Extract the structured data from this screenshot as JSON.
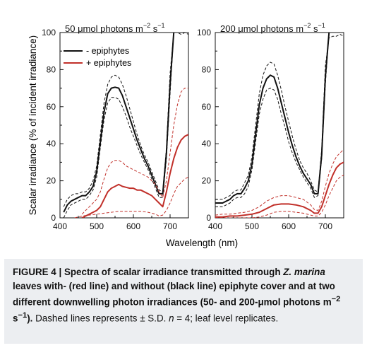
{
  "chart_data": [
    {
      "type": "line",
      "panel_label": "50 μmol photons m",
      "panel_label_sup1": "−2",
      "panel_label_mid": " s",
      "panel_label_sup2": "−1",
      "xlim": [
        400,
        750
      ],
      "ylim": [
        0,
        100
      ],
      "xticks": [
        "400",
        "500",
        "600",
        "700"
      ],
      "yticks": [
        "0",
        "20",
        "40",
        "60",
        "80",
        "100"
      ],
      "legend": {
        "placement": "top-left",
        "entries": [
          "- epiphytes",
          "+ epiphytes"
        ]
      },
      "series": [
        {
          "name": "- epiphytes",
          "color": "#111111",
          "style": "solid",
          "x": [
            410,
            420,
            430,
            440,
            450,
            460,
            470,
            480,
            490,
            500,
            510,
            520,
            530,
            540,
            550,
            560,
            570,
            580,
            590,
            600,
            610,
            620,
            630,
            640,
            650,
            660,
            670,
            680,
            690,
            700,
            710
          ],
          "y": [
            3,
            7,
            9,
            10,
            11,
            12,
            12,
            14,
            17,
            25,
            41,
            57,
            67,
            70,
            70.5,
            70,
            66,
            60,
            54,
            48,
            42,
            37,
            32,
            28,
            23,
            18,
            13,
            13,
            35,
            72,
            100
          ]
        },
        {
          "name": "- epiphytes +SD",
          "color": "#111111",
          "style": "dashed",
          "x": [
            410,
            420,
            430,
            440,
            450,
            460,
            470,
            480,
            490,
            500,
            510,
            520,
            530,
            540,
            550,
            560,
            570,
            580,
            590,
            600,
            610,
            620,
            630,
            640,
            650,
            660,
            670,
            680,
            690,
            700,
            710,
            720,
            730,
            740,
            750
          ],
          "y": [
            6,
            10,
            12,
            13,
            13,
            14,
            14,
            16,
            20,
            28,
            45,
            62,
            72,
            76,
            77,
            76,
            72,
            66,
            59,
            52,
            45,
            39,
            34,
            30,
            25,
            20,
            15,
            14,
            38,
            78,
            100,
            100,
            99,
            100,
            99
          ]
        },
        {
          "name": "- epiphytes -SD",
          "color": "#111111",
          "style": "dashed",
          "x": [
            410,
            420,
            430,
            440,
            450,
            460,
            470,
            480,
            490,
            500,
            510,
            520,
            530,
            540,
            550,
            560,
            570,
            580,
            590,
            600,
            610,
            620,
            630,
            640,
            650,
            660,
            670,
            680,
            690,
            700,
            710
          ],
          "y": [
            0,
            4,
            7,
            8,
            9,
            10,
            10,
            12,
            15,
            22,
            38,
            53,
            62,
            65,
            65,
            64,
            60,
            55,
            49,
            44,
            39,
            34,
            30,
            26,
            21,
            16,
            11,
            11,
            32,
            67,
            100
          ]
        },
        {
          "name": "+ epiphytes",
          "color": "#c1302a",
          "style": "solid",
          "x": [
            460,
            470,
            480,
            490,
            500,
            510,
            520,
            530,
            540,
            550,
            560,
            570,
            580,
            590,
            600,
            610,
            620,
            630,
            640,
            650,
            660,
            670,
            680,
            690,
            700,
            710,
            720,
            730,
            740,
            750
          ],
          "y": [
            0,
            1,
            2,
            3,
            4,
            6,
            10,
            14,
            16,
            17,
            18,
            17,
            16.5,
            16,
            16,
            15,
            15,
            14,
            13,
            12,
            10,
            8,
            6,
            14,
            24,
            32,
            38,
            42,
            44,
            45
          ]
        },
        {
          "name": "+ epiphytes +SD",
          "color": "#c1302a",
          "style": "dashed",
          "x": [
            460,
            470,
            480,
            490,
            500,
            510,
            520,
            530,
            540,
            550,
            560,
            570,
            580,
            590,
            600,
            610,
            620,
            630,
            640,
            650,
            660,
            670,
            680,
            690,
            700,
            710,
            720,
            730,
            740,
            750
          ],
          "y": [
            2,
            4,
            6,
            8,
            10,
            14,
            21,
            27,
            30,
            31,
            31,
            30,
            28,
            27,
            26,
            25,
            24,
            23,
            22,
            20,
            18,
            14,
            11,
            20,
            35,
            50,
            61,
            68,
            70,
            70
          ]
        },
        {
          "name": "+ epiphytes -SD",
          "color": "#c1302a",
          "style": "dashed",
          "x": [
            440,
            460,
            480,
            500,
            520,
            540,
            560,
            580,
            600,
            620,
            640,
            660,
            670,
            680,
            690,
            700,
            710,
            720,
            730,
            740,
            750
          ],
          "y": [
            0,
            1,
            1.5,
            2,
            2.5,
            3,
            3.5,
            3.5,
            3.5,
            3.5,
            3,
            2,
            1,
            1.5,
            4,
            8,
            13,
            17,
            19,
            21,
            22
          ]
        }
      ]
    },
    {
      "type": "line",
      "panel_label": "200 μmol photons m",
      "panel_label_sup1": "−2",
      "panel_label_mid": " s",
      "panel_label_sup2": "−1",
      "xlim": [
        400,
        750
      ],
      "ylim": [
        0,
        100
      ],
      "xticks": [
        "400",
        "500",
        "600",
        "700"
      ],
      "yticks": [
        "0",
        "20",
        "40",
        "60",
        "80",
        "100"
      ],
      "series": [
        {
          "name": "- epiphytes",
          "color": "#111111",
          "style": "solid",
          "x": [
            400,
            410,
            420,
            430,
            440,
            450,
            460,
            470,
            480,
            490,
            500,
            510,
            520,
            530,
            540,
            550,
            560,
            570,
            580,
            590,
            600,
            610,
            620,
            630,
            640,
            650,
            660,
            670,
            680,
            690,
            700,
            710
          ],
          "y": [
            8,
            8,
            8,
            9,
            10,
            12,
            13,
            13,
            16,
            20,
            29,
            45,
            61,
            70,
            75,
            77,
            76,
            70,
            62,
            54,
            46,
            39,
            33,
            28,
            24,
            21,
            18,
            13,
            13,
            34,
            76,
            100
          ]
        },
        {
          "name": "- epiphytes +SD",
          "color": "#111111",
          "style": "dashed",
          "x": [
            400,
            410,
            420,
            430,
            440,
            450,
            460,
            470,
            480,
            490,
            500,
            510,
            520,
            530,
            540,
            550,
            560,
            570,
            580,
            590,
            600,
            610,
            620,
            630,
            640,
            650,
            660,
            670,
            680,
            690,
            700,
            710,
            720,
            730,
            740,
            750
          ],
          "y": [
            10,
            10,
            10,
            11,
            12,
            14,
            15,
            15,
            19,
            23,
            33,
            50,
            67,
            77,
            82,
            84,
            83,
            77,
            69,
            60,
            52,
            44,
            37,
            31,
            27,
            24,
            20,
            15,
            14,
            37,
            82,
            97,
            98,
            98,
            99,
            98
          ]
        },
        {
          "name": "- epiphytes -SD",
          "color": "#111111",
          "style": "dashed",
          "x": [
            400,
            410,
            420,
            430,
            440,
            450,
            460,
            470,
            480,
            490,
            500,
            510,
            520,
            530,
            540,
            550,
            560,
            570,
            580,
            590,
            600,
            610,
            620,
            630,
            640,
            650,
            660,
            670,
            680,
            690,
            700,
            710
          ],
          "y": [
            6,
            6,
            6,
            7,
            8,
            10,
            11,
            11,
            13,
            17,
            26,
            41,
            56,
            64,
            69,
            70,
            69,
            64,
            56,
            49,
            41,
            35,
            30,
            26,
            22,
            19,
            16,
            11,
            12,
            32,
            72,
            100
          ]
        },
        {
          "name": "+ epiphytes",
          "color": "#c1302a",
          "style": "solid",
          "x": [
            400,
            420,
            440,
            460,
            480,
            500,
            520,
            540,
            560,
            580,
            600,
            620,
            640,
            660,
            670,
            680,
            690,
            700,
            710,
            720,
            730,
            740,
            750
          ],
          "y": [
            0.5,
            0.5,
            1,
            1,
            1.5,
            2,
            3,
            5,
            7,
            7.5,
            7.5,
            7,
            6,
            4,
            2.5,
            2.5,
            6,
            12,
            18,
            23,
            27,
            29,
            30
          ]
        },
        {
          "name": "+ epiphytes +SD",
          "color": "#c1302a",
          "style": "dashed",
          "x": [
            400,
            420,
            440,
            460,
            480,
            500,
            520,
            540,
            560,
            580,
            600,
            620,
            640,
            660,
            670,
            680,
            690,
            700,
            710,
            720,
            730,
            740,
            750
          ],
          "y": [
            1.5,
            2,
            2,
            2.5,
            3,
            4,
            6,
            9,
            11,
            12,
            12,
            11,
            10,
            7,
            4.5,
            4,
            9,
            17,
            24,
            29,
            33,
            35,
            37
          ]
        },
        {
          "name": "+ epiphytes -SD",
          "color": "#c1302a",
          "style": "dashed",
          "x": [
            400,
            420,
            440,
            460,
            480,
            500,
            520,
            540,
            560,
            580,
            600,
            620,
            640,
            660,
            670,
            680,
            690,
            700,
            710,
            720,
            730,
            740,
            750
          ],
          "y": [
            0,
            0,
            0,
            0,
            0,
            0,
            0.5,
            1.5,
            3,
            3.5,
            3.5,
            3,
            2.5,
            1.5,
            1,
            1,
            3,
            7,
            12,
            16,
            20,
            22,
            23
          ]
        }
      ]
    }
  ],
  "axes": {
    "ylabel": "Scalar irradiance (% of incident irradiance)",
    "xlabel": "Wavelength (nm)"
  },
  "caption": {
    "fig_label": "FIGURE 4 | Spectra of scalar irradiance transmitted through ",
    "species": "Z. marina",
    "bold_rest_1": " leaves with- (red line) and without (black line) epiphyte cover and at two different downwelling photon irradiances (50- and 200-μmol photons m",
    "sup1": "−2",
    "bold_rest_2": " s",
    "sup2": "−1",
    "bold_end": ").",
    "regular": " Dashed lines represents ± S.D. ",
    "n_var": "n",
    "regular_end": " = 4; leaf level replicates."
  }
}
